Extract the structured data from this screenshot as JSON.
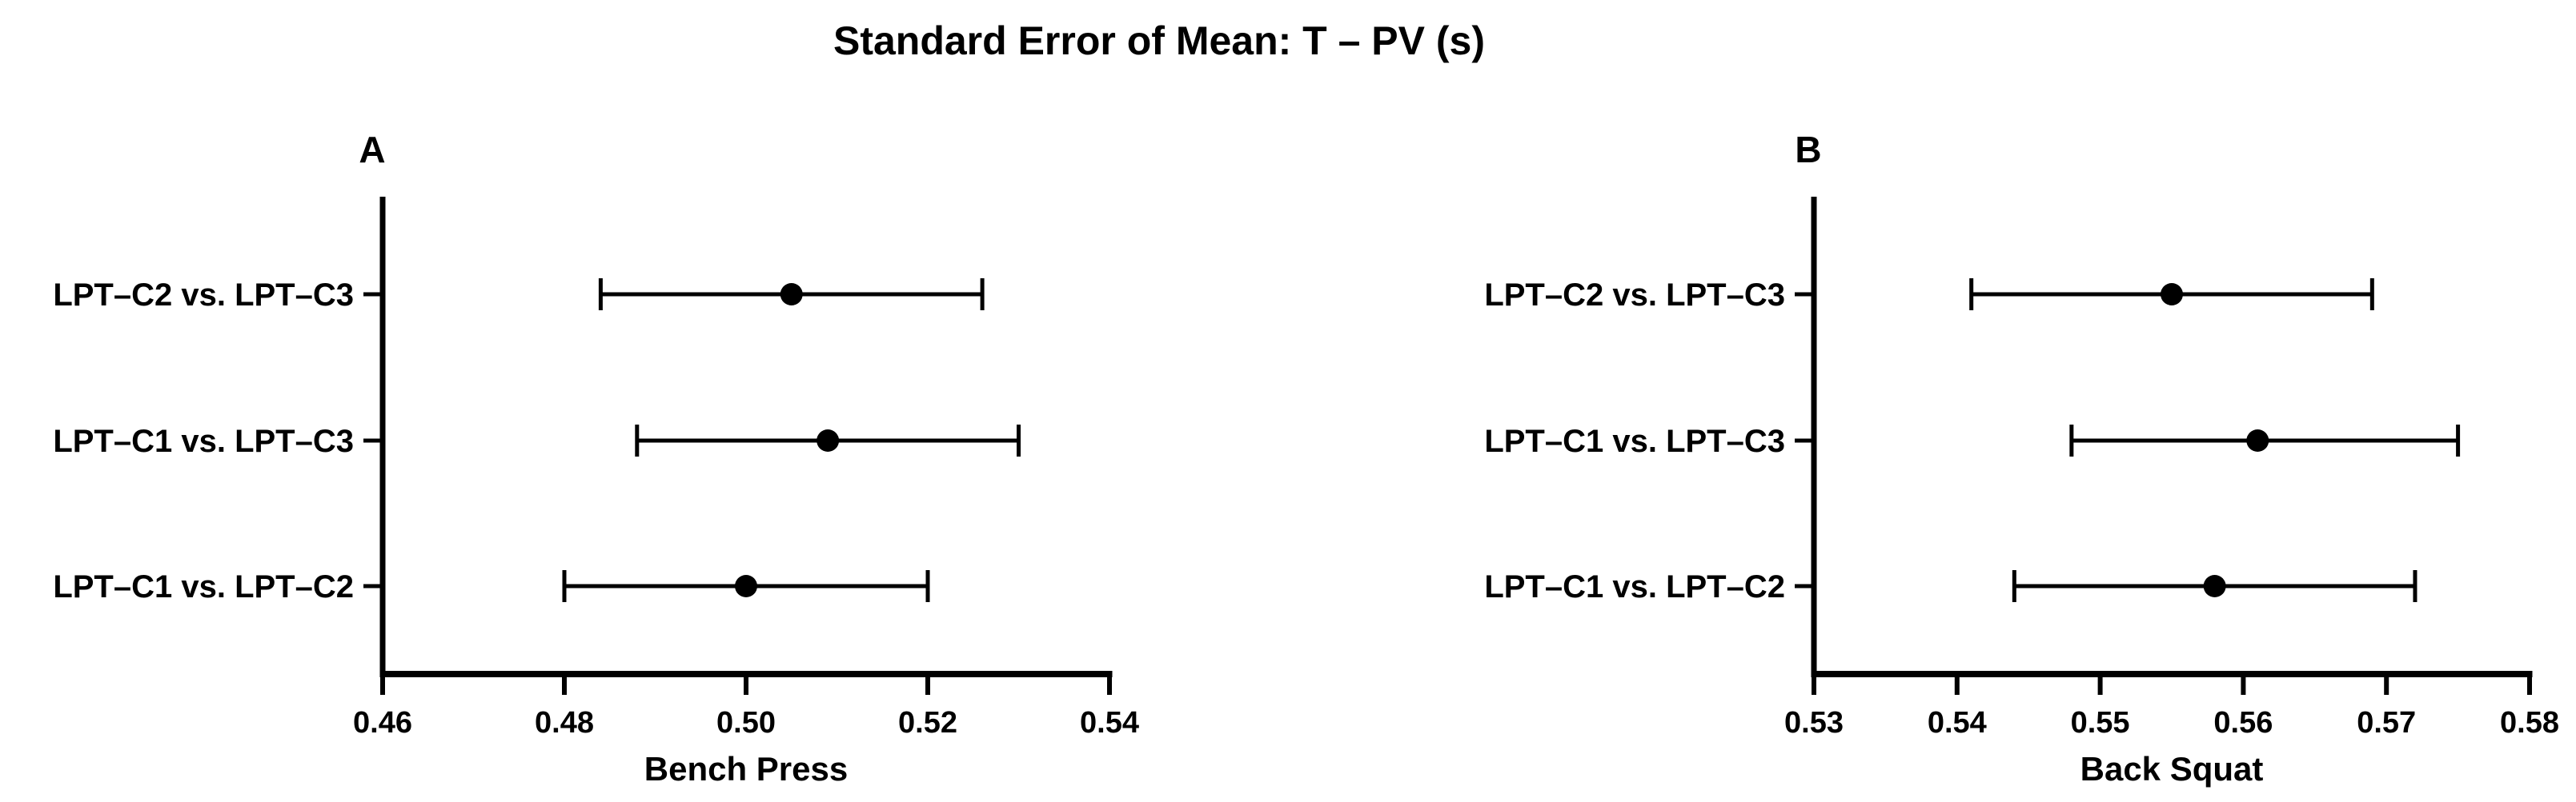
{
  "title": "Standard Error of Mean: T – PV (s)",
  "colors": {
    "foreground": "#000000",
    "background": "#ffffff"
  },
  "chart_data": [
    {
      "type": "scatter",
      "panel_label": "A",
      "xlabel": "Bench Press",
      "ylabel": "",
      "grid": false,
      "legend": "none",
      "marker": "filled-circle-with-horizontal-error-bars",
      "xlim": [
        0.46,
        0.54
      ],
      "xticks": [
        0.46,
        0.48,
        0.5,
        0.52,
        0.54
      ],
      "xtick_labels": [
        "0.46",
        "0.48",
        "0.50",
        "0.52",
        "0.54"
      ],
      "categories": [
        "LPT–C2 vs. LPT–C3",
        "LPT–C1 vs. LPT–C3",
        "LPT–C1 vs. LPT–C2"
      ],
      "series": [
        {
          "name": "T – PV mean ± SEM (s)",
          "means": [
            0.505,
            0.509,
            0.5
          ],
          "lower": [
            0.484,
            0.488,
            0.48
          ],
          "upper": [
            0.526,
            0.53,
            0.52
          ]
        }
      ]
    },
    {
      "type": "scatter",
      "panel_label": "B",
      "xlabel": "Back Squat",
      "ylabel": "",
      "grid": false,
      "legend": "none",
      "marker": "filled-circle-with-horizontal-error-bars",
      "xlim": [
        0.53,
        0.58
      ],
      "xticks": [
        0.53,
        0.54,
        0.55,
        0.56,
        0.57,
        0.58
      ],
      "xtick_labels": [
        "0.53",
        "0.54",
        "0.55",
        "0.56",
        "0.57",
        "0.58"
      ],
      "categories": [
        "LPT–C2 vs. LPT–C3",
        "LPT–C1 vs. LPT–C3",
        "LPT–C1 vs. LPT–C2"
      ],
      "series": [
        {
          "name": "T – PV mean ± SEM (s)",
          "means": [
            0.555,
            0.561,
            0.558
          ],
          "lower": [
            0.541,
            0.548,
            0.544
          ],
          "upper": [
            0.569,
            0.575,
            0.572
          ]
        }
      ]
    }
  ]
}
